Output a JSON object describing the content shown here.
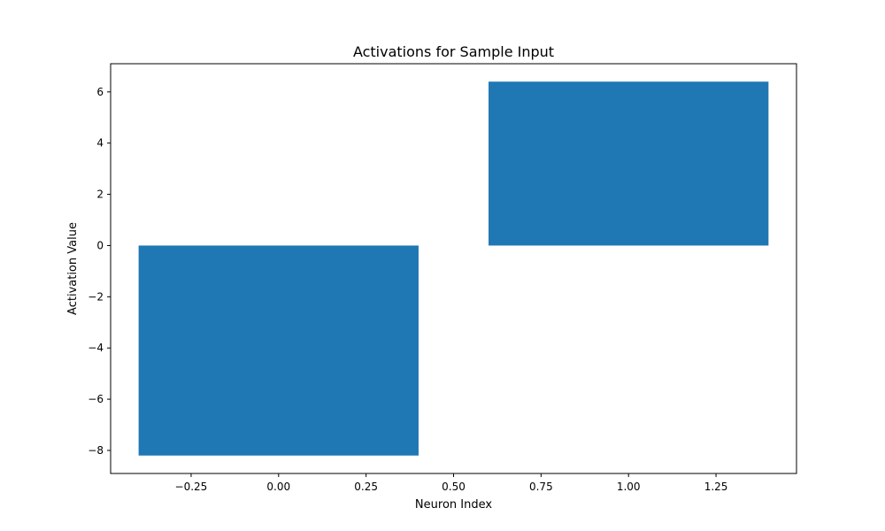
{
  "chart_data": {
    "type": "bar",
    "title": "Activations for Sample Input",
    "xlabel": "Neuron Index",
    "ylabel": "Activation Value",
    "bar_width": 0.8,
    "bars": [
      {
        "x": 0,
        "value": -8.2
      },
      {
        "x": 1,
        "value": 6.4
      }
    ],
    "xlim": [
      -0.48,
      1.48
    ],
    "ylim": [
      -8.9,
      7.1
    ],
    "xticks": [
      -0.25,
      0.0,
      0.25,
      0.5,
      0.75,
      1.0,
      1.25
    ],
    "xtick_labels": [
      "−0.25",
      "0.00",
      "0.25",
      "0.50",
      "0.75",
      "1.00",
      "1.25"
    ],
    "yticks": [
      -8,
      -6,
      -4,
      -2,
      0,
      2,
      4,
      6
    ],
    "ytick_labels": [
      "−8",
      "−6",
      "−4",
      "−2",
      "0",
      "2",
      "4",
      "6"
    ],
    "bar_color": "#1f77b4",
    "grid": false,
    "legend": "none"
  }
}
